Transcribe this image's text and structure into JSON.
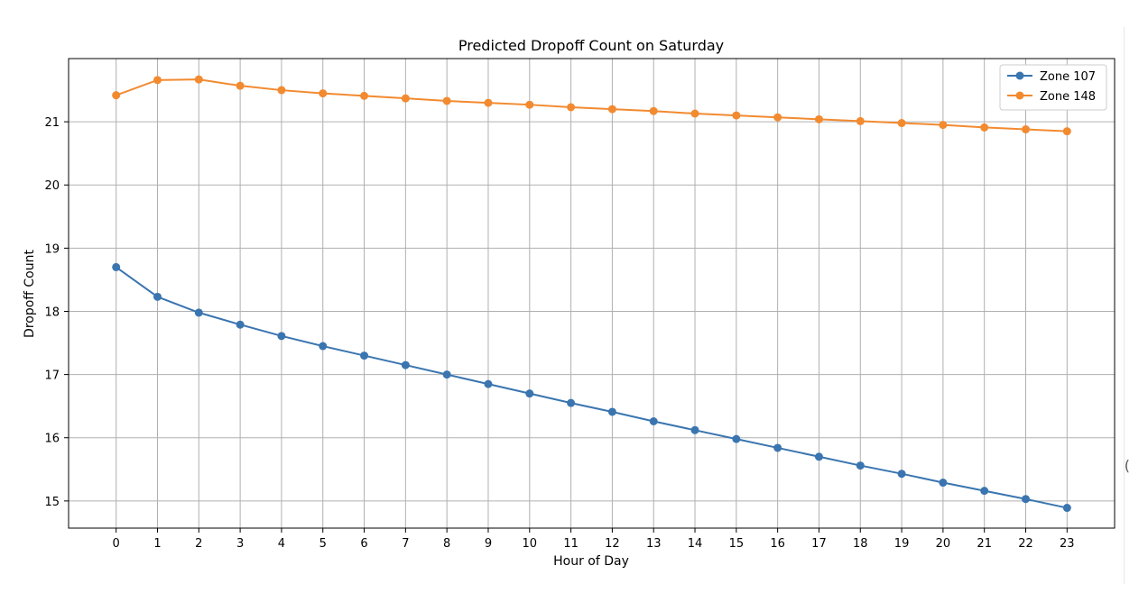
{
  "chart_data": {
    "type": "line",
    "title": "Predicted Dropoff Count on Saturday",
    "xlabel": "Hour of Day",
    "ylabel": "Dropoff Count",
    "x": [
      0,
      1,
      2,
      3,
      4,
      5,
      6,
      7,
      8,
      9,
      10,
      11,
      12,
      13,
      14,
      15,
      16,
      17,
      18,
      19,
      20,
      21,
      22,
      23
    ],
    "xlim": [
      -1.15,
      24.15
    ],
    "ylim": [
      14.57,
      22.0
    ],
    "yticks": [
      15,
      16,
      17,
      18,
      19,
      20,
      21
    ],
    "grid": true,
    "legend_position": "top-right",
    "series": [
      {
        "name": "Zone 107",
        "color": "#3a75b0",
        "marker": "circle",
        "values": [
          18.7,
          18.23,
          17.98,
          17.79,
          17.61,
          17.45,
          17.3,
          17.15,
          17.0,
          16.85,
          16.7,
          16.55,
          16.41,
          16.26,
          16.12,
          15.98,
          15.84,
          15.7,
          15.56,
          15.43,
          15.29,
          15.16,
          15.03,
          14.89
        ]
      },
      {
        "name": "Zone 148",
        "color": "#f28a30",
        "marker": "circle",
        "values": [
          21.42,
          21.66,
          21.67,
          21.57,
          21.5,
          21.45,
          21.41,
          21.37,
          21.33,
          21.3,
          21.27,
          21.23,
          21.2,
          21.17,
          21.13,
          21.1,
          21.07,
          21.04,
          21.01,
          20.98,
          20.95,
          20.91,
          20.88,
          20.85
        ]
      }
    ]
  },
  "page_decor": {
    "edge_glyph": "("
  }
}
